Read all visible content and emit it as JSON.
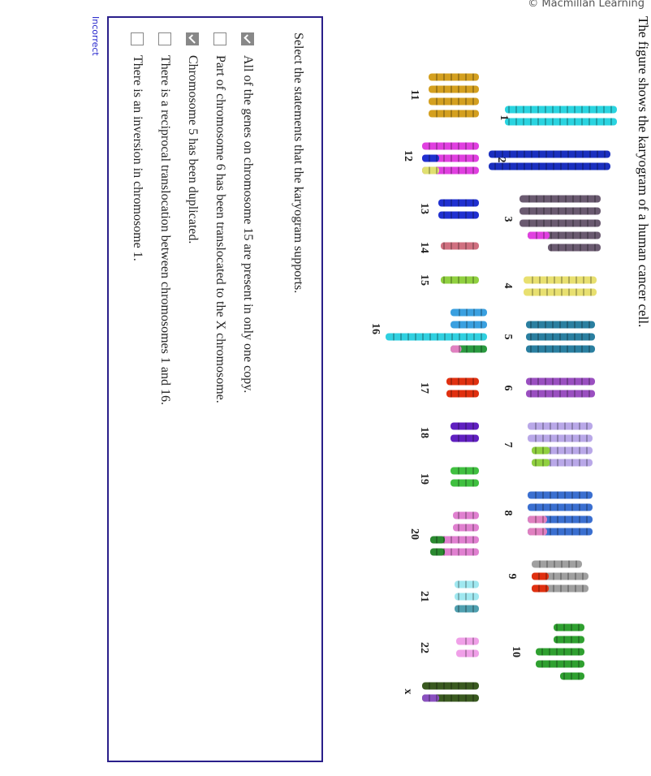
{
  "header": {
    "copyright": "© Macmillan Learning",
    "title": "The figure shows the karyogram of a human cancer cell."
  },
  "karyogram": {
    "labels": [
      "1",
      "2",
      "3",
      "4",
      "5",
      "6",
      "7",
      "8",
      "9",
      "10",
      "11",
      "12",
      "13",
      "14",
      "15",
      "16",
      "17",
      "18",
      "19",
      "20",
      "21",
      "22",
      "x"
    ]
  },
  "question": {
    "prompt": "Select the statements that the karyogram supports.",
    "options": [
      {
        "label": "All of the genes on chromosome 15 are present in only one copy.",
        "checked": true
      },
      {
        "label": "Part of chromosome 6 has been translocated to the X chromosome.",
        "checked": false
      },
      {
        "label": "Chromosome 5 has been duplicated.",
        "checked": true
      },
      {
        "label": "There is a reciprocal translocation between chromosomes 1 and 16.",
        "checked": false
      },
      {
        "label": "There is an inversion in chromosome 1.",
        "checked": false
      }
    ]
  },
  "feedback": "Incorrect"
}
